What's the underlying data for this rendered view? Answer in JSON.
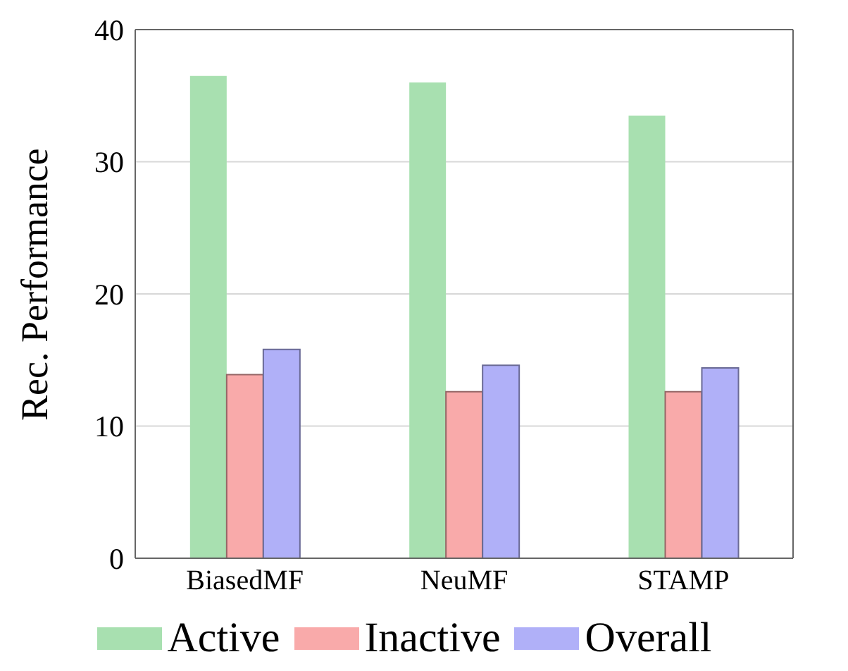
{
  "chart_data": {
    "type": "bar",
    "ylabel": "Rec. Performance",
    "categories": [
      "BiasedMF",
      "NeuMF",
      "STAMP"
    ],
    "series": [
      {
        "name": "Active",
        "color": "#a8e0b0",
        "values": [
          36.5,
          36.0,
          33.5
        ]
      },
      {
        "name": "Inactive",
        "color": "#f9aaaa",
        "values": [
          13.9,
          12.6,
          12.6
        ]
      },
      {
        "name": "Overall",
        "color": "#b0b0f8",
        "values": [
          15.8,
          14.6,
          14.4
        ]
      }
    ],
    "ylim": [
      0,
      40
    ],
    "yticks": [
      0,
      10,
      20,
      30,
      40
    ],
    "grid": "y",
    "legend": "bottom"
  }
}
